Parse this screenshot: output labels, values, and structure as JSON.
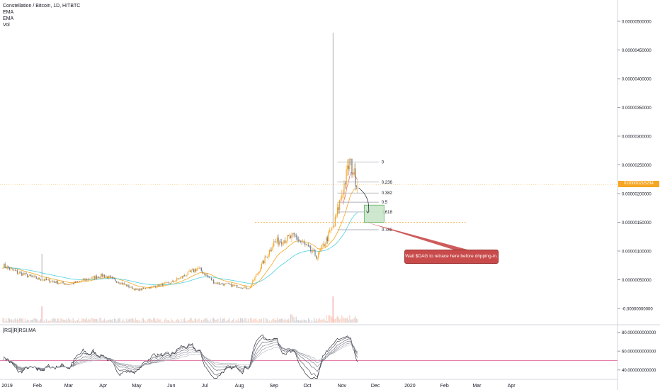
{
  "legend": {
    "title": "Constellation / Bitcoin, 1D, HITBTC",
    "items": [
      "EMA",
      "EMA",
      "Vol"
    ]
  },
  "rsi_legend": "[RS][R]RSI.MA",
  "annotation_text": "Wait $DAG to retrace here before dripping-in.",
  "current_price_label": "0.00000215234",
  "colors": {
    "up": "#f5a623",
    "down": "#787b86",
    "ema_fast": "#f5a623",
    "ema_slow": "#4dd0e1",
    "ema_red": "#e57373",
    "fib": "#9598a1",
    "zone_fill": "#c8e6c9",
    "zone_border": "#43a047",
    "callout": "#c84a4a",
    "rsi_pink": "#e06c9f"
  },
  "chart_data": {
    "type": "candlestick",
    "title": "Constellation / Bitcoin, 1D, HITBTC",
    "x_ticks": [
      "2019",
      "Feb",
      "Mar",
      "Apr",
      "May",
      "Jun",
      "Jul",
      "Aug",
      "Sep",
      "Oct",
      "Nov",
      "Dec",
      "2020",
      "Feb",
      "Mar",
      "Apr"
    ],
    "price_ticks": [
      "0.00000500000",
      "0.00000450000",
      "0.00000400000",
      "0.00000350000",
      "0.00000300000",
      "0.00000250000",
      "0.00000200000",
      "0.00000150000",
      "0.00000100000",
      "0.00000050000",
      "-0.00000000000"
    ],
    "price_range": [
      0,
      5e-06
    ],
    "current_price": 2.15234e-06,
    "rsi_ticks": [
      "80.000000000000",
      "60.000000000000",
      "40.000000000000"
    ],
    "rsi_range": [
      30,
      85
    ],
    "rsi_level": 50,
    "fib_levels": [
      {
        "label": "0",
        "value": 2.55e-06
      },
      {
        "label": "0.236",
        "value": 2.2e-06
      },
      {
        "label": "0.382",
        "value": 2.01e-06
      },
      {
        "label": "0.5",
        "value": 1.85e-06
      },
      {
        "label": "0.618",
        "value": 1.68e-06
      },
      {
        "label": "0.786",
        "value": 1.37e-06
      }
    ],
    "support_level": 1.5e-06,
    "close_series": [
      {
        "date": "2019-01-01",
        "close": 7.5e-07
      },
      {
        "date": "2019-01-15",
        "close": 6.2e-07
      },
      {
        "date": "2019-02-01",
        "close": 5.2e-07
      },
      {
        "date": "2019-03-01",
        "close": 4.2e-07
      },
      {
        "date": "2019-04-01",
        "close": 5.8e-07
      },
      {
        "date": "2019-05-01",
        "close": 3.2e-07
      },
      {
        "date": "2019-06-01",
        "close": 4.5e-07
      },
      {
        "date": "2019-06-25",
        "close": 7e-07
      },
      {
        "date": "2019-07-10",
        "close": 4.5e-07
      },
      {
        "date": "2019-08-10",
        "close": 3.5e-07
      },
      {
        "date": "2019-09-01",
        "close": 1.15e-06
      },
      {
        "date": "2019-09-20",
        "close": 1.25e-06
      },
      {
        "date": "2019-10-10",
        "close": 9e-07
      },
      {
        "date": "2019-10-25",
        "close": 1.45e-06
      },
      {
        "date": "2019-11-01",
        "close": 2e-06
      },
      {
        "date": "2019-11-08",
        "close": 2.55e-06
      },
      {
        "date": "2019-11-15",
        "close": 2.15e-06
      }
    ]
  }
}
